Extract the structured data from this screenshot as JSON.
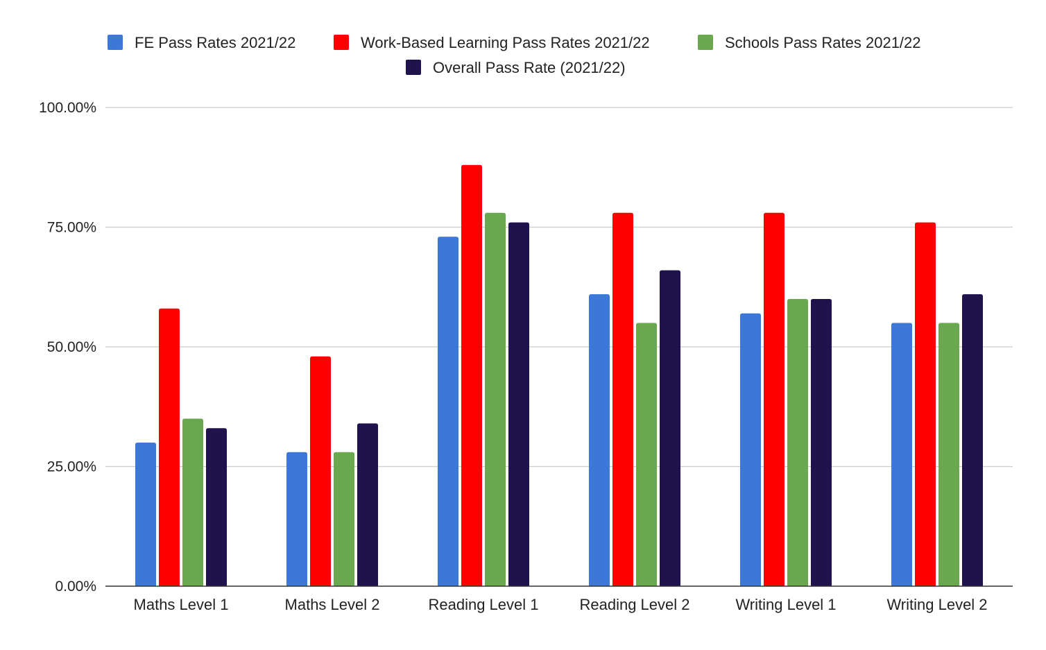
{
  "chart_data": {
    "type": "bar",
    "title": "",
    "xlabel": "",
    "ylabel": "",
    "categories": [
      "Maths Level 1",
      "Maths Level 2",
      "Reading Level 1",
      "Reading Level 2",
      "Writing Level 1",
      "Writing Level 2"
    ],
    "series": [
      {
        "name": "FE Pass Rates 2021/22",
        "color": "#3c78d8",
        "values": [
          30,
          28,
          73,
          61,
          57,
          55
        ]
      },
      {
        "name": "Work-Based Learning Pass Rates 2021/22",
        "color": "#ff0000",
        "values": [
          58,
          48,
          88,
          78,
          78,
          76
        ]
      },
      {
        "name": "Schools Pass Rates 2021/22",
        "color": "#6aa84f",
        "values": [
          35,
          28,
          78,
          55,
          60,
          55
        ]
      },
      {
        "name": "Overall Pass Rate (2021/22)",
        "color": "#20124d",
        "values": [
          33,
          34,
          76,
          66,
          60,
          61
        ]
      }
    ],
    "ylim": [
      0,
      100
    ],
    "yticks": [
      0,
      25,
      50,
      75,
      100
    ],
    "ytick_labels": [
      "0.00%",
      "25.00%",
      "50.00%",
      "75.00%",
      "100.00%"
    ],
    "grid": true,
    "legend_position": "top-center"
  }
}
